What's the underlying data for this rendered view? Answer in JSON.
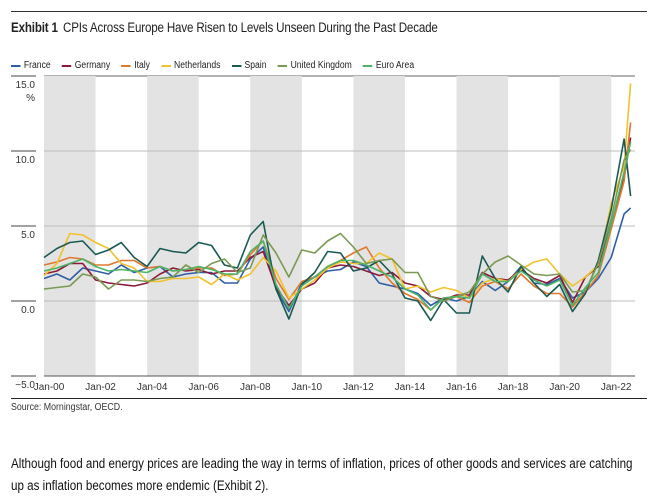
{
  "header": {
    "exhibit_label": "Exhibit 1",
    "title": "CPIs Across Europe Have Risen to Levels Unseen During the Past Decade"
  },
  "source": "Source: Morningstar, OECD.",
  "paragraph": "Although food and energy prices are leading the way in terms of inflation, prices of other goods and services are catching up as inflation becomes more endemic (Exhibit 2).",
  "chart_data": {
    "type": "line",
    "title": "CPIs Across Europe Have Risen to Levels Unseen During the Past Decade",
    "xlabel": "",
    "ylabel": "%",
    "ylim": [
      -5,
      15
    ],
    "xlim": [
      2000,
      2023
    ],
    "yticks": [
      15.0,
      10.0,
      5.0,
      0.0,
      -5.0
    ],
    "ytick_labels": [
      "15.0",
      "10.0",
      "5.0",
      "0.0",
      "−5.0"
    ],
    "y_unit_label": "%",
    "xtick_labels": [
      "Jan-00",
      "Jan-02",
      "Jan-04",
      "Jan-06",
      "Jan-08",
      "Jan-10",
      "Jan-12",
      "Jan-14",
      "Jan-16",
      "Jan-18",
      "Jan-20",
      "Jan-22"
    ],
    "xtick_years": [
      2000,
      2002,
      2004,
      2006,
      2008,
      2010,
      2012,
      2014,
      2016,
      2018,
      2020,
      2022
    ],
    "shaded_bands": [
      [
        2000,
        2002
      ],
      [
        2004,
        2006
      ],
      [
        2008,
        2010
      ],
      [
        2012,
        2014
      ],
      [
        2016,
        2018
      ],
      [
        2020,
        2022
      ]
    ],
    "grid": true,
    "legend_position": "top",
    "x": [
      2000.0,
      2000.5,
      2001.0,
      2001.5,
      2002.0,
      2002.5,
      2003.0,
      2003.5,
      2004.0,
      2004.5,
      2005.0,
      2005.5,
      2006.0,
      2006.5,
      2007.0,
      2007.5,
      2008.0,
      2008.5,
      2009.0,
      2009.5,
      2010.0,
      2010.5,
      2011.0,
      2011.5,
      2012.0,
      2012.5,
      2013.0,
      2013.5,
      2014.0,
      2014.5,
      2015.0,
      2015.5,
      2016.0,
      2016.5,
      2017.0,
      2017.5,
      2018.0,
      2018.5,
      2019.0,
      2019.5,
      2020.0,
      2020.5,
      2021.0,
      2021.5,
      2022.0,
      2022.5,
      2022.75
    ],
    "series": [
      {
        "name": "France",
        "color": "#2e5fa6",
        "values": [
          1.5,
          1.8,
          1.4,
          2.2,
          2.0,
          1.8,
          2.4,
          1.9,
          2.2,
          2.3,
          1.6,
          1.8,
          1.9,
          1.9,
          1.2,
          1.2,
          2.8,
          3.6,
          0.8,
          -0.7,
          1.2,
          1.6,
          2.0,
          2.1,
          2.6,
          2.3,
          1.2,
          1.0,
          0.8,
          0.5,
          -0.3,
          0.2,
          0.0,
          0.3,
          1.3,
          0.7,
          1.3,
          2.3,
          1.2,
          1.1,
          1.5,
          0.2,
          0.6,
          1.5,
          2.9,
          5.8,
          6.2
        ]
      },
      {
        "name": "Germany",
        "color": "#8b1a3a",
        "values": [
          1.8,
          2.0,
          2.5,
          2.5,
          1.4,
          1.2,
          1.1,
          1.0,
          1.2,
          1.8,
          2.2,
          2.0,
          2.1,
          1.8,
          2.0,
          2.0,
          2.9,
          3.3,
          0.9,
          -0.3,
          0.8,
          1.2,
          2.2,
          2.4,
          2.3,
          2.0,
          1.7,
          1.9,
          1.2,
          1.0,
          0.3,
          0.1,
          0.4,
          0.4,
          1.9,
          1.5,
          1.4,
          2.1,
          1.5,
          1.2,
          1.7,
          -0.1,
          1.6,
          2.3,
          5.1,
          8.2,
          10.9
        ]
      },
      {
        "name": "Italy",
        "color": "#e0782e",
        "values": [
          2.4,
          2.6,
          2.9,
          2.8,
          2.4,
          2.4,
          2.7,
          2.7,
          2.2,
          2.3,
          2.0,
          2.1,
          2.2,
          2.2,
          1.7,
          1.8,
          3.1,
          4.0,
          1.5,
          0.1,
          1.3,
          1.6,
          2.3,
          2.7,
          3.2,
          3.6,
          2.2,
          1.2,
          0.5,
          0.1,
          -0.6,
          0.2,
          0.3,
          -0.1,
          1.0,
          1.3,
          0.8,
          1.8,
          1.0,
          0.5,
          0.5,
          -0.4,
          0.6,
          1.7,
          4.8,
          8.0,
          11.9
        ]
      },
      {
        "name": "Netherlands",
        "color": "#f2c12e",
        "values": [
          1.7,
          2.5,
          4.5,
          4.4,
          3.9,
          3.5,
          2.5,
          2.2,
          1.3,
          1.3,
          1.5,
          1.5,
          1.6,
          1.1,
          1.8,
          1.4,
          1.8,
          2.9,
          2.0,
          0.2,
          0.8,
          1.4,
          2.2,
          2.6,
          2.5,
          2.5,
          3.2,
          2.8,
          0.8,
          1.0,
          0.6,
          0.9,
          0.7,
          0.2,
          1.2,
          1.5,
          1.3,
          2.1,
          2.6,
          2.8,
          1.8,
          1.0,
          1.6,
          2.4,
          6.5,
          9.0,
          14.5
        ]
      },
      {
        "name": "Spain",
        "color": "#1a5a52",
        "values": [
          2.9,
          3.5,
          3.9,
          4.0,
          3.1,
          3.4,
          3.9,
          2.9,
          2.3,
          3.5,
          3.3,
          3.2,
          3.9,
          3.7,
          2.4,
          2.2,
          4.4,
          5.3,
          0.8,
          -1.2,
          1.1,
          1.9,
          3.3,
          3.2,
          2.0,
          2.2,
          2.7,
          1.8,
          0.2,
          0.0,
          -1.3,
          0.1,
          -0.8,
          -0.8,
          3.0,
          1.5,
          0.6,
          2.3,
          1.2,
          0.3,
          1.1,
          -0.7,
          0.5,
          2.7,
          6.1,
          10.8,
          7.0
        ]
      },
      {
        "name": "United Kingdom",
        "color": "#7a9a52",
        "values": [
          0.8,
          0.9,
          1.0,
          1.8,
          1.6,
          0.8,
          1.4,
          1.4,
          1.3,
          1.5,
          1.6,
          2.4,
          1.9,
          2.5,
          2.8,
          1.9,
          2.2,
          4.4,
          3.2,
          1.6,
          3.4,
          3.2,
          4.0,
          4.5,
          3.6,
          2.5,
          2.7,
          2.8,
          1.9,
          1.9,
          0.3,
          0.0,
          0.3,
          0.6,
          1.8,
          2.6,
          3.0,
          2.4,
          1.8,
          1.7,
          1.8,
          0.6,
          0.7,
          2.5,
          5.5,
          9.4,
          10.1
        ]
      },
      {
        "name": "Euro Area",
        "color": "#4db36a",
        "values": [
          2.0,
          2.2,
          2.5,
          2.8,
          2.3,
          2.0,
          2.1,
          2.0,
          1.9,
          2.3,
          2.0,
          2.1,
          2.3,
          2.1,
          1.8,
          1.8,
          3.3,
          4.0,
          1.1,
          -0.5,
          1.0,
          1.6,
          2.3,
          2.7,
          2.7,
          2.4,
          2.0,
          1.6,
          0.8,
          0.4,
          -0.6,
          0.2,
          0.3,
          0.2,
          1.8,
          1.3,
          1.3,
          2.0,
          1.4,
          1.0,
          1.4,
          -0.3,
          0.9,
          1.9,
          5.1,
          8.6,
          10.6
        ]
      }
    ]
  }
}
